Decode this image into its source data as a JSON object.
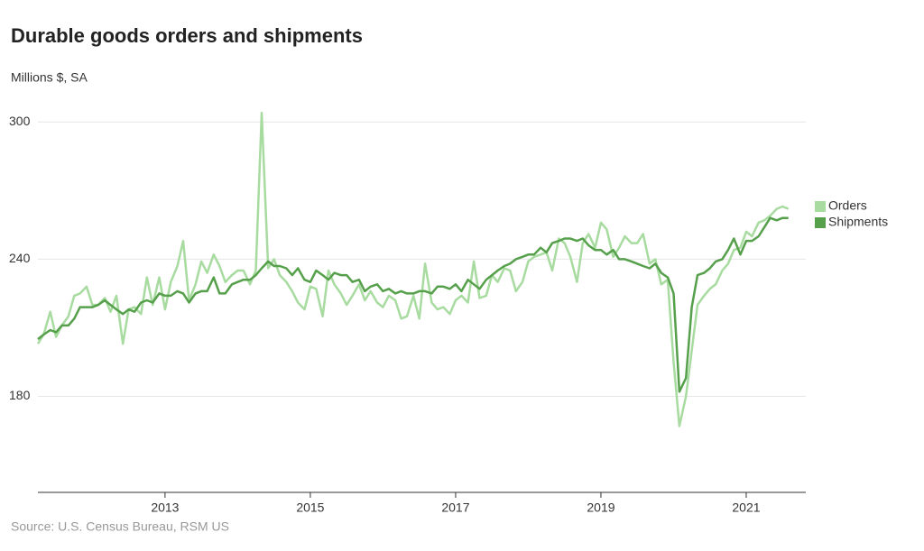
{
  "chart_data": {
    "type": "line",
    "title": "Durable goods orders and shipments",
    "subtitle": "Millions $, SA",
    "source": "Source: U.S. Census Bureau, RSM US",
    "x": [
      2011.25,
      2011.33,
      2011.42,
      2011.5,
      2011.58,
      2011.67,
      2011.75,
      2011.83,
      2011.92,
      2012,
      2012.08,
      2012.17,
      2012.25,
      2012.33,
      2012.42,
      2012.5,
      2012.58,
      2012.67,
      2012.75,
      2012.83,
      2012.92,
      2013,
      2013.08,
      2013.17,
      2013.25,
      2013.33,
      2013.42,
      2013.5,
      2013.58,
      2013.67,
      2013.75,
      2013.83,
      2013.92,
      2014,
      2014.08,
      2014.17,
      2014.25,
      2014.33,
      2014.42,
      2014.5,
      2014.58,
      2014.67,
      2014.75,
      2014.83,
      2014.92,
      2015,
      2015.08,
      2015.17,
      2015.25,
      2015.33,
      2015.42,
      2015.5,
      2015.58,
      2015.67,
      2015.75,
      2015.83,
      2015.92,
      2016,
      2016.08,
      2016.17,
      2016.25,
      2016.33,
      2016.42,
      2016.5,
      2016.58,
      2016.67,
      2016.75,
      2016.83,
      2016.92,
      2017,
      2017.08,
      2017.17,
      2017.25,
      2017.33,
      2017.42,
      2017.5,
      2017.58,
      2017.67,
      2017.75,
      2017.83,
      2017.92,
      2018,
      2018.08,
      2018.17,
      2018.25,
      2018.33,
      2018.42,
      2018.5,
      2018.58,
      2018.67,
      2018.75,
      2018.83,
      2018.92,
      2019,
      2019.08,
      2019.17,
      2019.25,
      2019.33,
      2019.42,
      2019.5,
      2019.58,
      2019.67,
      2019.75,
      2019.83,
      2019.92,
      2020,
      2020.08,
      2020.17,
      2020.25,
      2020.33,
      2020.42,
      2020.5,
      2020.58,
      2020.67,
      2020.75,
      2020.83,
      2020.92,
      2021,
      2021.08,
      2021.17,
      2021.25,
      2021.33,
      2021.42,
      2021.5,
      2021.58
    ],
    "series": [
      {
        "name": "Orders",
        "color": "#a8dba0",
        "values": [
          203,
          207,
          217,
          206,
          211,
          215,
          224,
          225,
          228,
          220,
          220,
          223,
          217,
          224,
          203,
          218,
          219,
          216,
          232,
          220,
          232,
          218,
          230,
          237,
          248,
          222,
          229,
          239,
          234,
          242,
          237,
          230,
          233,
          235,
          235,
          229,
          235,
          304,
          236,
          240,
          233,
          230,
          226,
          221,
          218,
          228,
          227,
          215,
          235,
          229,
          225,
          220,
          224,
          229,
          222,
          226,
          221,
          219,
          224,
          222,
          214,
          215,
          224,
          214,
          238,
          221,
          218,
          219,
          216,
          222,
          224,
          221,
          239,
          223,
          224,
          233,
          230,
          236,
          235,
          226,
          230,
          239,
          241,
          242,
          243,
          235,
          249,
          247,
          241,
          230,
          247,
          251,
          245,
          256,
          253,
          241,
          245,
          250,
          247,
          247,
          251,
          238,
          240,
          229,
          231,
          195,
          167,
          180,
          200,
          220,
          224,
          227,
          229,
          235,
          238,
          244,
          245,
          252,
          250,
          256,
          257,
          259,
          262,
          263,
          262
        ]
      },
      {
        "name": "Shipments",
        "color": "#56a04c",
        "values": [
          205,
          207,
          209,
          208,
          211,
          211,
          214,
          219,
          219,
          219,
          220,
          222,
          220,
          218,
          216,
          218,
          217,
          221,
          222,
          221,
          225,
          224,
          224,
          226,
          225,
          221,
          225,
          226,
          226,
          232,
          225,
          225,
          229,
          230,
          231,
          231,
          233,
          236,
          239,
          237,
          237,
          236,
          233,
          236,
          231,
          230,
          235,
          233,
          231,
          234,
          233,
          233,
          230,
          231,
          226,
          228,
          229,
          226,
          227,
          225,
          226,
          225,
          225,
          226,
          226,
          225,
          228,
          228,
          227,
          229,
          226,
          231,
          229,
          227,
          231,
          233,
          235,
          237,
          238,
          240,
          241,
          242,
          242,
          245,
          243,
          247,
          248,
          249,
          249,
          248,
          249,
          246,
          244,
          244,
          242,
          244,
          240,
          240,
          239,
          238,
          237,
          236,
          238,
          234,
          232,
          225,
          182,
          188,
          219,
          233,
          234,
          236,
          239,
          240,
          244,
          249,
          242,
          248,
          248,
          250,
          254,
          258,
          257,
          258,
          258
        ]
      }
    ],
    "xlim": [
      2011.25,
      2021.82
    ],
    "xticks": [
      2013,
      2015,
      2017,
      2019,
      2021
    ],
    "ylim": [
      138,
      306
    ],
    "yticks": [
      180,
      240,
      300
    ],
    "grid": true,
    "legend": "right"
  }
}
